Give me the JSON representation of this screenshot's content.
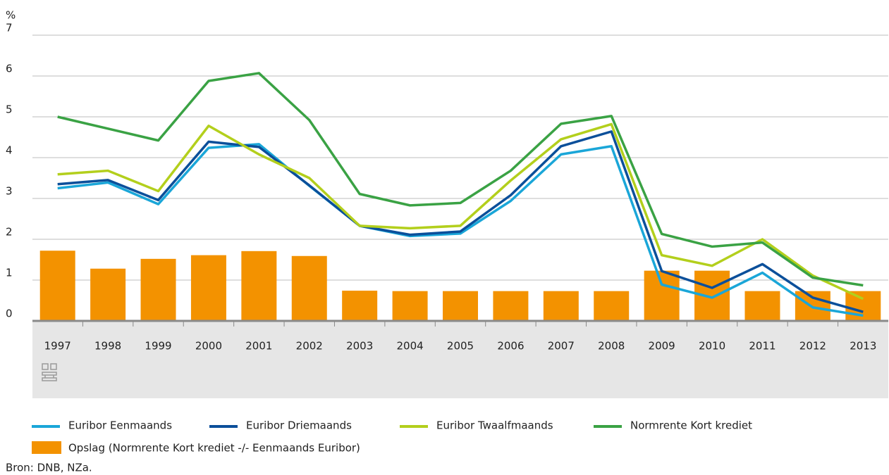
{
  "chart_data": {
    "type": "line",
    "y_label": "%",
    "categories": [
      "1997",
      "1998",
      "1999",
      "2000",
      "2001",
      "2002",
      "2003",
      "2004",
      "2005",
      "2006",
      "2007",
      "2008",
      "2009",
      "2010",
      "2011",
      "2012",
      "2013"
    ],
    "ylim": [
      0,
      7
    ],
    "yticks": [
      0,
      1,
      2,
      3,
      4,
      5,
      6,
      7
    ],
    "grid": true,
    "series": [
      {
        "name": "Euribor Eenmaands",
        "color": "#1aa6d8",
        "type": "line",
        "values": [
          3.25,
          3.39,
          2.86,
          4.24,
          4.33,
          3.31,
          2.33,
          2.08,
          2.14,
          2.94,
          4.08,
          4.28,
          0.89,
          0.57,
          1.18,
          0.33,
          0.13
        ]
      },
      {
        "name": "Euribor Driemaands",
        "color": "#0b4f9a",
        "type": "line",
        "values": [
          3.35,
          3.45,
          2.96,
          4.39,
          4.26,
          3.32,
          2.33,
          2.11,
          2.19,
          3.08,
          4.28,
          4.64,
          1.22,
          0.81,
          1.39,
          0.57,
          0.22
        ]
      },
      {
        "name": "Euribor Twaalfmaands",
        "color": "#b3cf1c",
        "type": "line",
        "values": [
          3.59,
          3.68,
          3.18,
          4.78,
          4.08,
          3.5,
          2.33,
          2.27,
          2.33,
          3.44,
          4.45,
          4.82,
          1.61,
          1.35,
          2.0,
          1.11,
          0.54
        ]
      },
      {
        "name": "Normrente Kort krediet",
        "color": "#3aa244",
        "type": "line",
        "values": [
          5.0,
          4.71,
          4.42,
          5.88,
          6.07,
          4.92,
          3.11,
          2.83,
          2.89,
          3.68,
          4.83,
          5.02,
          2.13,
          1.82,
          1.92,
          1.06,
          0.87
        ]
      },
      {
        "name": "Opslag (Normrente Kort krediet -/- Eenmaands Euribor)",
        "color": "#f39200",
        "type": "bar",
        "values": [
          1.72,
          1.28,
          1.52,
          1.61,
          1.71,
          1.59,
          0.74,
          0.73,
          0.73,
          0.73,
          0.73,
          0.73,
          1.23,
          1.23,
          0.73,
          0.73,
          0.73
        ]
      }
    ],
    "source": "Bron: DNB, NZa."
  }
}
